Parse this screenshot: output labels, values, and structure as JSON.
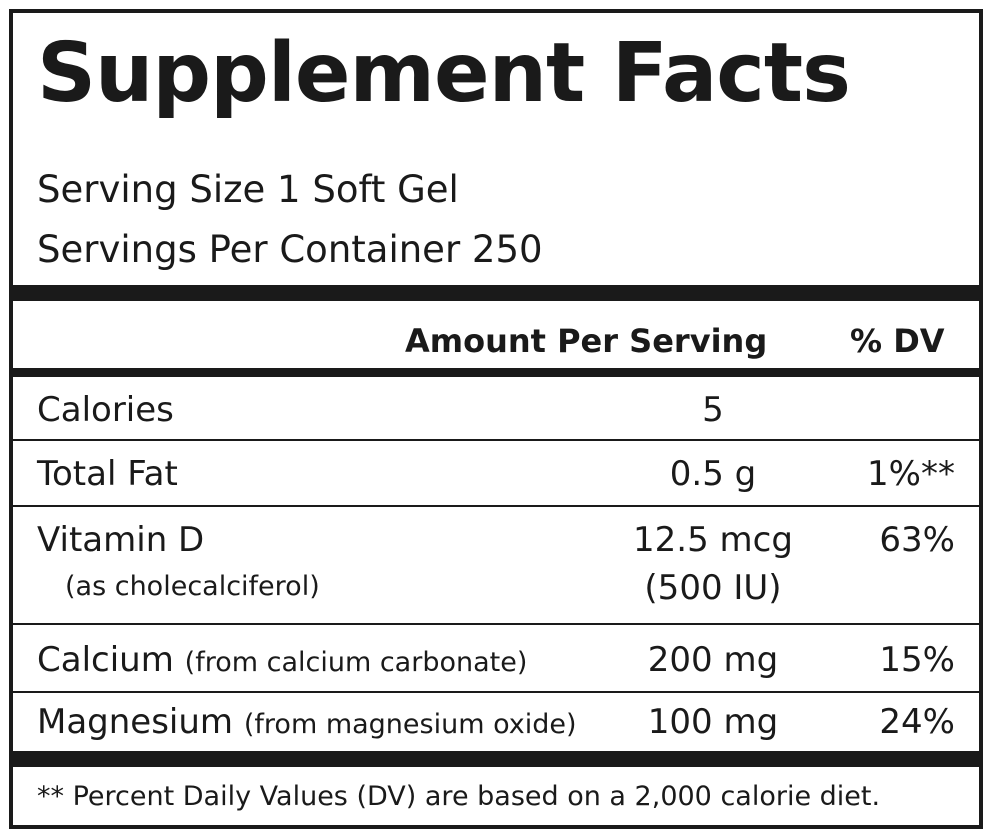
{
  "title": "Supplement Facts",
  "serving_size": "Serving Size 1 Soft Gel",
  "servings_per_container": "Servings Per Container 250",
  "header": {
    "amount": "Amount Per Serving",
    "dv": "% DV"
  },
  "rows": [
    {
      "name": "Calories",
      "amount": "5",
      "dv": ""
    },
    {
      "name": "Total Fat",
      "amount": "0.5 g",
      "dv": "1%**"
    },
    {
      "name": "Vitamin D",
      "sub": "(as cholecalciferol)",
      "amount": "12.5 mcg",
      "amount2": "(500 IU)",
      "dv": "63%"
    },
    {
      "name": "Calcium",
      "sub": "(from calcium carbonate)",
      "amount": "200 mg",
      "dv": "15%"
    },
    {
      "name": "Magnesium",
      "sub": "(from magnesium oxide)",
      "amount": "100 mg",
      "dv": "24%"
    }
  ],
  "footnote": "** Percent Daily Values (DV) are based on a 2,000 calorie diet."
}
